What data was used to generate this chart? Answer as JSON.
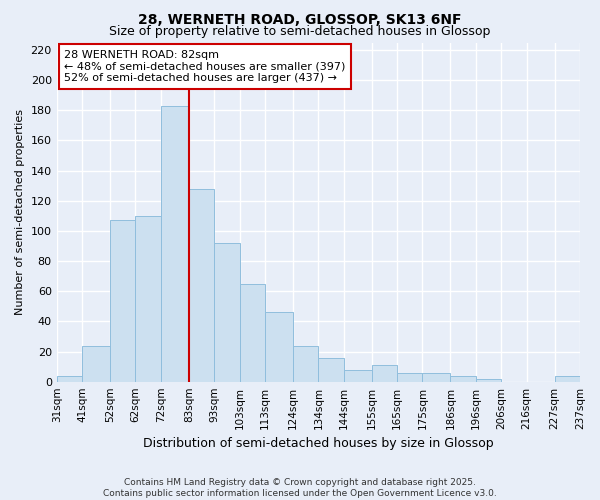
{
  "title": "28, WERNETH ROAD, GLOSSOP, SK13 6NF",
  "subtitle": "Size of property relative to semi-detached houses in Glossop",
  "xlabel": "Distribution of semi-detached houses by size in Glossop",
  "ylabel": "Number of semi-detached properties",
  "bin_labels": [
    "31sqm",
    "41sqm",
    "52sqm",
    "62sqm",
    "72sqm",
    "83sqm",
    "93sqm",
    "103sqm",
    "113sqm",
    "124sqm",
    "134sqm",
    "144sqm",
    "155sqm",
    "165sqm",
    "175sqm",
    "186sqm",
    "196sqm",
    "206sqm",
    "216sqm",
    "227sqm",
    "237sqm"
  ],
  "bin_edges": [
    31,
    41,
    52,
    62,
    72,
    83,
    93,
    103,
    113,
    124,
    134,
    144,
    155,
    165,
    175,
    186,
    196,
    206,
    216,
    227,
    237
  ],
  "counts": [
    4,
    24,
    107,
    110,
    183,
    128,
    92,
    65,
    46,
    24,
    16,
    8,
    11,
    6,
    6,
    4,
    2,
    0,
    0,
    4
  ],
  "bar_color": "#cce0f0",
  "bar_edge_color": "#90bedd",
  "vline_x": 83,
  "vline_color": "#cc0000",
  "annotation_title": "28 WERNETH ROAD: 82sqm",
  "annotation_line1": "← 48% of semi-detached houses are smaller (397)",
  "annotation_line2": "52% of semi-detached houses are larger (437) →",
  "annotation_box_color": "#ffffff",
  "annotation_box_edge": "#cc0000",
  "ylim": [
    0,
    225
  ],
  "yticks": [
    0,
    20,
    40,
    60,
    80,
    100,
    120,
    140,
    160,
    180,
    200,
    220
  ],
  "footer_line1": "Contains HM Land Registry data © Crown copyright and database right 2025.",
  "footer_line2": "Contains public sector information licensed under the Open Government Licence v3.0.",
  "bg_color": "#e8eef8",
  "grid_color": "#ffffff"
}
